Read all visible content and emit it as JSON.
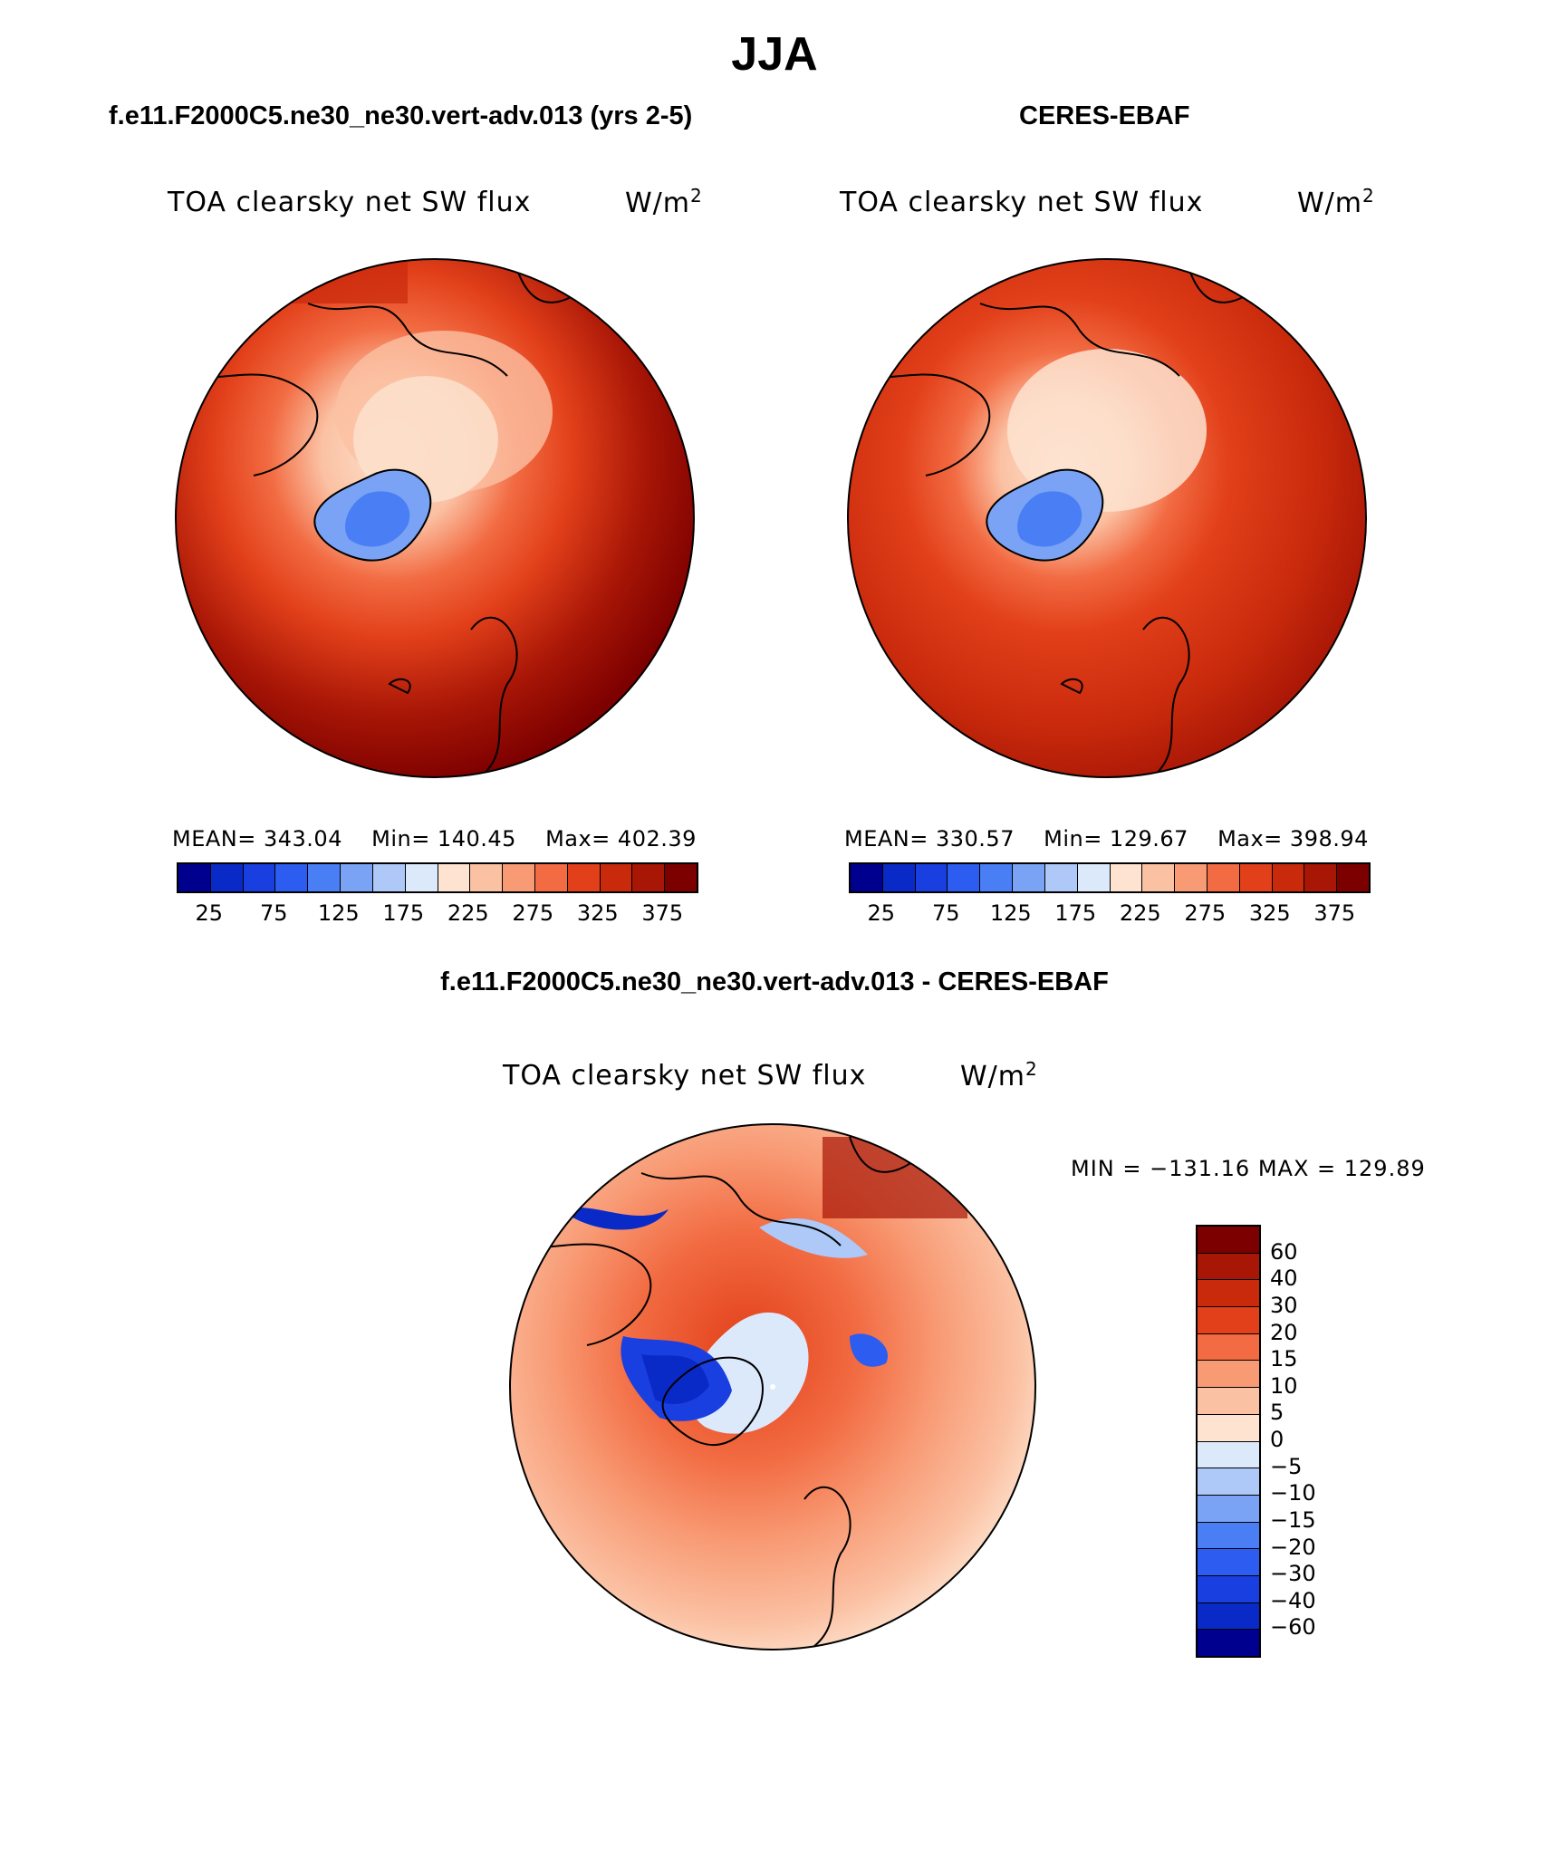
{
  "figure": {
    "season": "JJA",
    "diff_title": "f.e11.F2000C5.ne30_ne30.vert-adv.013 - CERES-EBAF"
  },
  "panels": [
    {
      "case": "f.e11.F2000C5.ne30_ne30.vert-adv.013 (yrs 2-5)",
      "variable": "TOA clearsky net SW flux",
      "units": "W/m",
      "units_exp": "2",
      "mean_label": "MEAN= 343.04",
      "min_label": "Min= 140.45",
      "max_label": "Max= 402.39"
    },
    {
      "case": "CERES-EBAF",
      "variable": "TOA clearsky net SW flux",
      "units": "W/m",
      "units_exp": "2",
      "mean_label": "MEAN= 330.57",
      "min_label": "Min= 129.67",
      "max_label": "Max= 398.94"
    }
  ],
  "diff_panel": {
    "variable": "TOA clearsky net SW flux",
    "units": "W/m",
    "units_exp": "2",
    "minmax_label": "MIN = −131.16 MAX = 129.89"
  },
  "colorbar_abs": {
    "tick_labels": [
      "25",
      "75",
      "125",
      "175",
      "225",
      "275",
      "325",
      "375"
    ],
    "colors": [
      "#00008f",
      "#0a2ac8",
      "#1a3fe0",
      "#2c5cf0",
      "#4a7ef5",
      "#7aa3f5",
      "#aec8f7",
      "#dce9fb",
      "#fde3d0",
      "#fbc1a3",
      "#f89a74",
      "#f26b42",
      "#e2401a",
      "#c92a0c",
      "#a81606",
      "#7c0000"
    ]
  },
  "colorbar_diff": {
    "tick_labels": [
      "60",
      "40",
      "30",
      "20",
      "15",
      "10",
      "5",
      "0",
      "−5",
      "−10",
      "−15",
      "−20",
      "−30",
      "−40",
      "−60"
    ],
    "colors": [
      "#00008f",
      "#0a2ac8",
      "#1a3fe0",
      "#2c5cf0",
      "#4a7ef5",
      "#7aa3f5",
      "#aec8f7",
      "#dce9fb",
      "#fde3d0",
      "#fbc1a3",
      "#f89a74",
      "#f26b42",
      "#e2401a",
      "#c92a0c",
      "#a81606",
      "#7c0000"
    ]
  }
}
